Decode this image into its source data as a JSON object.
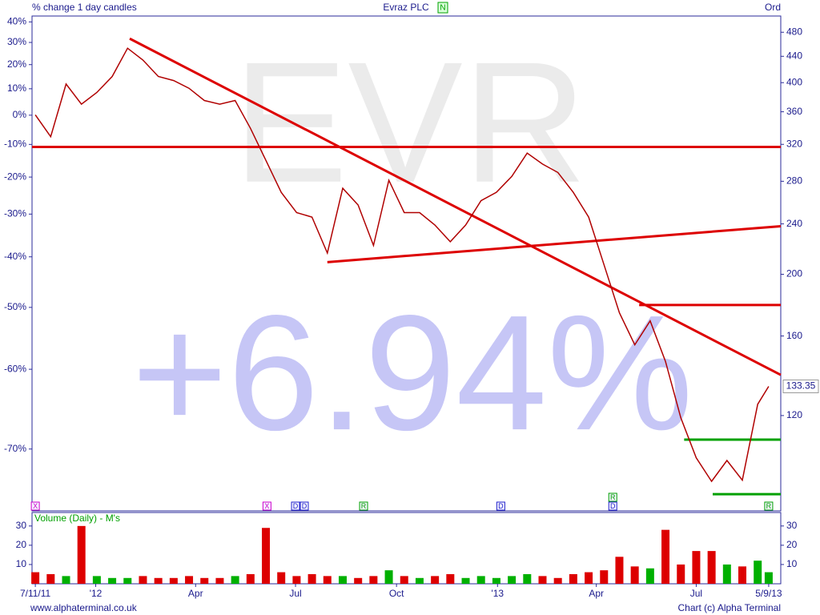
{
  "chart_data": [
    {
      "type": "line",
      "subtitle": "% change 1 day candles",
      "title": "Evraz PLC",
      "badge": "N",
      "share_class": "Ord",
      "watermark": "EVR",
      "change_label": "+6.94%",
      "log_scale": true,
      "xlim": [
        "2011-11-04",
        "2013-09-16"
      ],
      "x": [
        "2011-11-07",
        "2011-11-21",
        "2011-12-05",
        "2011-12-19",
        "2012-01-02",
        "2012-01-16",
        "2012-01-30",
        "2012-02-13",
        "2012-02-27",
        "2012-03-12",
        "2012-03-26",
        "2012-04-09",
        "2012-04-23",
        "2012-05-07",
        "2012-05-21",
        "2012-06-04",
        "2012-06-18",
        "2012-07-02",
        "2012-07-16",
        "2012-07-30",
        "2012-08-13",
        "2012-08-27",
        "2012-09-10",
        "2012-09-24",
        "2012-10-08",
        "2012-10-22",
        "2012-11-05",
        "2012-11-19",
        "2012-12-03",
        "2012-12-17",
        "2012-12-31",
        "2013-01-14",
        "2013-01-28",
        "2013-02-11",
        "2013-02-25",
        "2013-03-11",
        "2013-03-25",
        "2013-04-08",
        "2013-04-22",
        "2013-05-06",
        "2013-05-20",
        "2013-06-03",
        "2013-06-17",
        "2013-07-01",
        "2013-07-15",
        "2013-07-29",
        "2013-08-12",
        "2013-08-26",
        "2013-09-05"
      ],
      "series": [
        {
          "color": "#b00000",
          "values": [
            356,
            329,
            398,
            370,
            386,
            409,
            453,
            434,
            409,
            403,
            392,
            375,
            370,
            375,
            339,
            302,
            269,
            250,
            246,
            216,
            273,
            257,
            222,
            281,
            250,
            250,
            239,
            225,
            239,
            261,
            269,
            285,
            310,
            298,
            289,
            269,
            246,
            207,
            174,
            155,
            169,
            146,
            119,
            103,
            94.6,
            102,
            95,
            125,
            133.35
          ]
        }
      ],
      "up_color": "#00b000",
      "down_color": "#dd0000",
      "ylim": [
        85,
        509
      ],
      "yticks": [
        480,
        440,
        400,
        360,
        320,
        280,
        240,
        200,
        160,
        120
      ],
      "y2lim": [
        -76,
        43
      ],
      "y2ticks": [
        {
          "value": 40,
          "label": "40%"
        },
        {
          "value": 30,
          "label": "30%"
        },
        {
          "value": 20,
          "label": "20%"
        },
        {
          "value": 10,
          "label": "10%"
        },
        {
          "value": 0,
          "label": "0%"
        },
        {
          "value": -10,
          "label": "-10%"
        },
        {
          "value": -20,
          "label": "-20%"
        },
        {
          "value": -30,
          "label": "-30%"
        },
        {
          "value": -40,
          "label": "-40%"
        },
        {
          "value": -50,
          "label": "-50%"
        },
        {
          "value": -60,
          "label": "-60%"
        },
        {
          "value": -70,
          "label": "-70%"
        }
      ],
      "trend_lines": [
        {
          "color": "#dd0000",
          "x": [
            "2011-11-04",
            "2013-09-16"
          ],
          "values": [
            317,
            317
          ]
        },
        {
          "color": "#dd0000",
          "x": [
            "2012-02-01",
            "2013-09-16"
          ],
          "values": [
            469,
            139
          ]
        },
        {
          "color": "#dd0000",
          "x": [
            "2012-07-30",
            "2013-09-16"
          ],
          "values": [
            209,
            238
          ]
        },
        {
          "color": "#dd0000",
          "x": [
            "2013-05-10",
            "2013-09-16"
          ],
          "values": [
            179,
            179
          ]
        },
        {
          "color": "#00a000",
          "x": [
            "2013-06-20",
            "2013-09-16"
          ],
          "values": [
            110,
            110
          ]
        },
        {
          "color": "#00a000",
          "x": [
            "2013-07-16",
            "2013-09-16"
          ],
          "values": [
            90.3,
            90.3
          ]
        }
      ],
      "events": [
        {
          "x": "2011-11-07",
          "label": "X",
          "color": "#cc00cc"
        },
        {
          "x": "2012-06-05",
          "label": "X",
          "color": "#cc00cc"
        },
        {
          "x": "2012-07-01",
          "label": "D",
          "color": "#2222cc"
        },
        {
          "x": "2012-07-09",
          "label": "D",
          "color": "#2222cc"
        },
        {
          "x": "2012-09-01",
          "label": "R",
          "color": "#00a000"
        },
        {
          "x": "2013-01-04",
          "label": "D",
          "color": "#2222cc"
        },
        {
          "x": "2013-04-16",
          "label": "R",
          "color": "#00a000"
        },
        {
          "x": "2013-04-16",
          "label": "D",
          "color": "#2222cc"
        },
        {
          "x": "2013-09-05",
          "label": "R",
          "color": "#00a000"
        }
      ]
    },
    {
      "type": "bar",
      "title": "Volume (Daily) - M's",
      "xlim": [
        "2011-11-04",
        "2013-09-16"
      ],
      "x": [
        "2011-11-07",
        "2011-11-21",
        "2011-12-05",
        "2011-12-19",
        "2012-01-02",
        "2012-01-16",
        "2012-01-30",
        "2012-02-13",
        "2012-02-27",
        "2012-03-12",
        "2012-03-26",
        "2012-04-09",
        "2012-04-23",
        "2012-05-07",
        "2012-05-21",
        "2012-06-04",
        "2012-06-18",
        "2012-07-02",
        "2012-07-16",
        "2012-07-30",
        "2012-08-13",
        "2012-08-27",
        "2012-09-10",
        "2012-09-24",
        "2012-10-08",
        "2012-10-22",
        "2012-11-05",
        "2012-11-19",
        "2012-12-03",
        "2012-12-17",
        "2012-12-31",
        "2013-01-14",
        "2013-01-28",
        "2013-02-11",
        "2013-02-25",
        "2013-03-11",
        "2013-03-25",
        "2013-04-08",
        "2013-04-22",
        "2013-05-06",
        "2013-05-20",
        "2013-06-03",
        "2013-06-17",
        "2013-07-01",
        "2013-07-15",
        "2013-07-29",
        "2013-08-12",
        "2013-08-26",
        "2013-09-05"
      ],
      "values": [
        6,
        5,
        4,
        30,
        4,
        3,
        3,
        4,
        3,
        3,
        4,
        3,
        3,
        4,
        5,
        29,
        6,
        4,
        5,
        4,
        4,
        3,
        4,
        7,
        4,
        3,
        4,
        5,
        3,
        4,
        3,
        4,
        5,
        4,
        3,
        5,
        6,
        7,
        14,
        9,
        8,
        28,
        10,
        17,
        17,
        10,
        9,
        12,
        6
      ],
      "title_color": "#00a000",
      "ylim": [
        0,
        37
      ],
      "yticks": [
        30,
        20,
        10
      ],
      "xticks": [
        {
          "value": "2011-11-07",
          "label": "7/11/11"
        },
        {
          "value": "2012-01-01",
          "label": "'12"
        },
        {
          "value": "2012-04-01",
          "label": "Apr"
        },
        {
          "value": "2012-07-01",
          "label": "Jul"
        },
        {
          "value": "2012-10-01",
          "label": "Oct"
        },
        {
          "value": "2013-01-01",
          "label": "'13"
        },
        {
          "value": "2013-04-01",
          "label": "Apr"
        },
        {
          "value": "2013-07-01",
          "label": "Jul"
        },
        {
          "value": "2013-09-05",
          "label": "5/9/13"
        }
      ]
    }
  ],
  "footer": {
    "website": "www.alphaterminal.co.uk",
    "credit": "Chart (c) Alpha Terminal"
  }
}
